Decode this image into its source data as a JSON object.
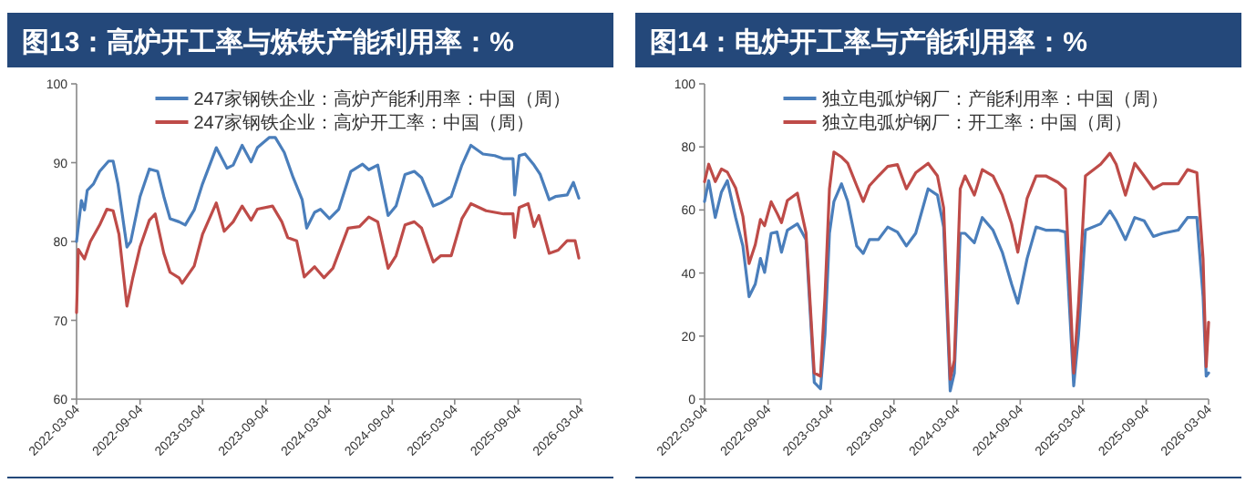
{
  "chart_data": [
    {
      "type": "line",
      "title": "图13：高炉开工率与炼铁产能利用率：%",
      "ylim": [
        60,
        100
      ],
      "yticks": [
        60,
        70,
        80,
        90,
        100
      ],
      "xlim": [
        "2022-03-04",
        "2026-03-04"
      ],
      "xticks": [
        "2022-03-04",
        "2022-09-04",
        "2023-03-04",
        "2023-09-04",
        "2024-03-04",
        "2024-09-04",
        "2025-03-04",
        "2025-09-04",
        "2026-03-04"
      ],
      "grid": false,
      "legend": "top",
      "series": [
        {
          "name": "247家钢铁企业：高炉产能利用率：中国（周）",
          "color": "#4a7ebb",
          "x": [
            "2022-03-04",
            "2022-03-18",
            "2022-03-27",
            "2022-04-04",
            "2022-04-22",
            "2022-05-10",
            "2022-06-05",
            "2022-06-18",
            "2022-07-02",
            "2022-07-28",
            "2022-08-08",
            "2022-09-04",
            "2022-10-01",
            "2022-10-25",
            "2022-11-12",
            "2022-11-30",
            "2022-12-26",
            "2023-01-13",
            "2023-02-08",
            "2023-03-04",
            "2023-04-13",
            "2023-05-14",
            "2023-06-01",
            "2023-06-27",
            "2023-07-23",
            "2023-08-10",
            "2023-09-14",
            "2023-10-01",
            "2023-10-27",
            "2023-11-22",
            "2023-12-18",
            "2023-12-31",
            "2024-01-23",
            "2024-02-09",
            "2024-03-06",
            "2024-04-02",
            "2024-05-07",
            "2024-06-10",
            "2024-06-28",
            "2024-07-24",
            "2024-08-23",
            "2024-09-15",
            "2024-10-11",
            "2024-11-07",
            "2024-11-28",
            "2025-01-01",
            "2025-01-23",
            "2025-02-22",
            "2025-03-25",
            "2025-04-20",
            "2025-05-25",
            "2025-06-28",
            "2025-07-24",
            "2025-08-20",
            "2025-08-25",
            "2025-09-07",
            "2025-09-24",
            "2025-10-20",
            "2025-11-07",
            "2025-12-03",
            "2025-12-21",
            "2026-01-24",
            "2026-02-11",
            "2026-02-27"
          ],
          "values": [
            80.0,
            85.2,
            84.0,
            86.5,
            87.3,
            88.9,
            90.2,
            90.2,
            87.3,
            79.3,
            80.0,
            85.7,
            89.2,
            88.9,
            85.7,
            82.9,
            82.5,
            82.1,
            84.0,
            87.3,
            91.9,
            89.3,
            89.7,
            92.2,
            90.1,
            91.9,
            93.2,
            93.2,
            91.3,
            88.1,
            85.3,
            81.7,
            83.7,
            84.1,
            82.9,
            84.1,
            88.9,
            89.8,
            89.1,
            89.7,
            83.3,
            84.5,
            88.5,
            88.9,
            88.1,
            84.5,
            84.9,
            85.7,
            89.7,
            92.2,
            91.1,
            90.9,
            90.5,
            90.5,
            85.9,
            90.9,
            91.1,
            89.7,
            88.5,
            85.3,
            85.7,
            85.9,
            87.5,
            85.5
          ]
        },
        {
          "name": "247家钢铁企业：高炉开工率：中国（周）",
          "color": "#be4b48",
          "x": [
            "2022-03-04",
            "2022-03-09",
            "2022-03-27",
            "2022-04-13",
            "2022-05-10",
            "2022-05-31",
            "2022-06-18",
            "2022-07-05",
            "2022-07-28",
            "2022-08-14",
            "2022-09-04",
            "2022-10-01",
            "2022-10-18",
            "2022-11-12",
            "2022-11-30",
            "2022-12-26",
            "2023-01-04",
            "2023-02-08",
            "2023-03-04",
            "2023-04-13",
            "2023-05-06",
            "2023-06-01",
            "2023-06-27",
            "2023-07-23",
            "2023-08-10",
            "2023-09-23",
            "2023-10-20",
            "2023-11-06",
            "2023-12-02",
            "2023-12-24",
            "2024-01-23",
            "2024-02-19",
            "2024-03-16",
            "2024-04-29",
            "2024-06-01",
            "2024-06-28",
            "2024-07-24",
            "2024-08-23",
            "2024-09-15",
            "2024-10-11",
            "2024-11-07",
            "2024-11-28",
            "2025-01-01",
            "2025-01-23",
            "2025-02-22",
            "2025-03-25",
            "2025-04-20",
            "2025-06-03",
            "2025-07-24",
            "2025-08-20",
            "2025-08-25",
            "2025-09-07",
            "2025-10-03",
            "2025-10-20",
            "2025-11-03",
            "2025-12-03",
            "2025-12-29",
            "2026-01-24",
            "2026-02-16",
            "2026-02-27"
          ],
          "values": [
            71.0,
            79.0,
            77.8,
            80.0,
            82.1,
            84.1,
            83.9,
            80.9,
            71.8,
            75.4,
            79.3,
            82.7,
            83.5,
            78.5,
            76.1,
            75.4,
            74.7,
            76.9,
            80.9,
            84.9,
            81.3,
            82.5,
            84.5,
            82.7,
            84.1,
            84.5,
            82.5,
            80.5,
            80.1,
            75.5,
            76.8,
            75.4,
            76.6,
            81.7,
            81.9,
            83.1,
            82.5,
            76.6,
            78.2,
            82.1,
            82.5,
            81.7,
            77.4,
            78.2,
            78.2,
            82.9,
            84.8,
            83.9,
            83.5,
            83.5,
            80.5,
            84.3,
            84.8,
            81.9,
            83.3,
            78.5,
            78.9,
            80.1,
            80.1,
            77.9
          ]
        }
      ]
    },
    {
      "type": "line",
      "title": "图14：电炉开工率与产能利用率：%",
      "ylim": [
        0,
        100
      ],
      "yticks": [
        0,
        20,
        40,
        60,
        80,
        100
      ],
      "xlim": [
        "2022-03-04",
        "2026-03-04"
      ],
      "xticks": [
        "2022-03-04",
        "2022-09-04",
        "2023-03-04",
        "2023-09-04",
        "2024-03-04",
        "2024-09-04",
        "2025-03-04",
        "2025-09-04",
        "2026-03-04"
      ],
      "grid": false,
      "legend": "top",
      "x": [
        "2022-03-04",
        "2022-03-16",
        "2022-04-04",
        "2022-04-22",
        "2022-05-09",
        "2022-06-02",
        "2022-06-23",
        "2022-07-11",
        "2022-07-29",
        "2022-08-13",
        "2022-08-25",
        "2022-09-13",
        "2022-09-30",
        "2022-10-13",
        "2022-10-30",
        "2022-11-28",
        "2022-12-23",
        "2023-01-16",
        "2023-02-03",
        "2023-02-16",
        "2023-03-01",
        "2023-03-14",
        "2023-04-05",
        "2023-04-23",
        "2023-05-19",
        "2023-06-07",
        "2023-06-25",
        "2023-07-21",
        "2023-08-17",
        "2023-09-14",
        "2023-10-10",
        "2023-11-06",
        "2023-12-12",
        "2024-01-08",
        "2024-01-26",
        "2024-02-14",
        "2024-02-26",
        "2024-03-14",
        "2024-03-28",
        "2024-04-24",
        "2024-05-17",
        "2024-06-17",
        "2024-07-14",
        "2024-08-10",
        "2024-08-28",
        "2024-09-24",
        "2024-10-20",
        "2024-11-17",
        "2024-12-22",
        "2025-01-13",
        "2025-02-06",
        "2025-02-20",
        "2025-03-12",
        "2025-04-25",
        "2025-05-22",
        "2025-06-09",
        "2025-07-06",
        "2025-08-02",
        "2025-08-29",
        "2025-09-25",
        "2025-10-22",
        "2025-12-06",
        "2026-01-02",
        "2026-01-29",
        "2026-02-16",
        "2026-02-25",
        "2026-03-04"
      ],
      "series": [
        {
          "name": "独立电弧炉钢厂：产能利用率：中国（周）",
          "color": "#4a7ebb",
          "values": [
            62.7,
            69.3,
            57.6,
            65.7,
            69.3,
            57.6,
            48.6,
            32.5,
            36.5,
            44.6,
            40.2,
            52.6,
            53.0,
            46.6,
            53.6,
            55.6,
            50.6,
            5.3,
            3.3,
            20.4,
            52.6,
            62.7,
            68.3,
            62.7,
            48.6,
            46.2,
            50.6,
            50.6,
            54.6,
            53.0,
            48.6,
            52.6,
            66.7,
            64.7,
            54.6,
            2.6,
            8.3,
            52.6,
            52.6,
            49.6,
            57.6,
            53.6,
            46.6,
            36.5,
            30.4,
            44.6,
            54.6,
            53.6,
            53.6,
            53.0,
            4.2,
            20.4,
            53.6,
            55.6,
            59.7,
            56.6,
            50.6,
            57.6,
            56.6,
            51.6,
            52.6,
            53.6,
            57.6,
            57.6,
            32.5,
            7.3,
            8.3
          ]
        },
        {
          "name": "独立电弧炉钢厂：开工率：中国（周）",
          "color": "#be4b48",
          "values": [
            69.0,
            74.5,
            69.0,
            73.0,
            72.0,
            67.0,
            58.0,
            43.0,
            49.0,
            57.0,
            55.0,
            62.6,
            59.0,
            56.0,
            63.0,
            65.3,
            52.8,
            8.3,
            7.3,
            32.5,
            66.7,
            78.4,
            76.8,
            74.8,
            67.7,
            62.7,
            67.7,
            70.8,
            73.8,
            74.4,
            66.7,
            71.8,
            74.8,
            70.8,
            60.7,
            6.3,
            12.3,
            66.7,
            70.8,
            64.7,
            72.8,
            70.8,
            64.7,
            55.6,
            46.6,
            63.7,
            70.8,
            70.8,
            68.8,
            66.7,
            8.3,
            30.4,
            70.8,
            74.5,
            78.0,
            74.5,
            64.7,
            74.8,
            70.8,
            66.7,
            68.3,
            68.3,
            72.8,
            71.8,
            44.5,
            10.3,
            24.4
          ]
        }
      ]
    }
  ]
}
